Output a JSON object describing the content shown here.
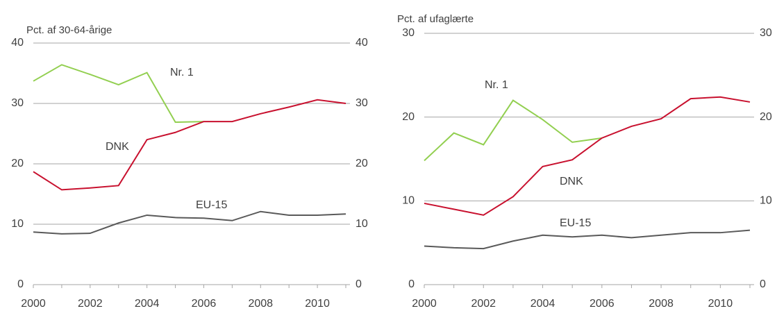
{
  "chart_data": [
    {
      "type": "line",
      "y_label": "Pct. af 30-64-årige",
      "x": [
        2000,
        2001,
        2002,
        2003,
        2004,
        2005,
        2006,
        2007,
        2008,
        2009,
        2010,
        2011
      ],
      "xlim": [
        2000,
        2011
      ],
      "xticks": [
        2000,
        2002,
        2004,
        2006,
        2008,
        2010
      ],
      "ylim": [
        0,
        40
      ],
      "yticks": [
        0,
        10,
        20,
        30,
        40
      ],
      "y2lim": [
        0,
        40
      ],
      "y2ticks": [
        0,
        10,
        20,
        30,
        40
      ],
      "grid": true,
      "series": [
        {
          "name": "Nr. 1",
          "color": "#92cf50",
          "values": [
            33.7,
            36.4,
            34.8,
            33.1,
            35.1,
            26.9,
            27.0,
            null,
            null,
            null,
            null,
            null
          ]
        },
        {
          "name": "DNK",
          "color": "#c8102e",
          "values": [
            18.7,
            15.7,
            16.0,
            16.4,
            24.0,
            25.2,
            27.0,
            27.0,
            28.3,
            29.4,
            30.6,
            30.0
          ]
        },
        {
          "name": "EU-15",
          "color": "#595959",
          "values": [
            8.7,
            8.4,
            8.5,
            10.2,
            11.5,
            11.1,
            11.0,
            10.6,
            12.1,
            11.5,
            11.5,
            11.7
          ]
        }
      ]
    },
    {
      "type": "line",
      "y_label": "Pct. af ufaglærte",
      "x": [
        2000,
        2001,
        2002,
        2003,
        2004,
        2005,
        2006,
        2007,
        2008,
        2009,
        2010,
        2011
      ],
      "xlim": [
        2000,
        2011
      ],
      "xticks": [
        2000,
        2002,
        2004,
        2006,
        2008,
        2010
      ],
      "ylim": [
        0,
        30
      ],
      "yticks": [
        0,
        10,
        20,
        30
      ],
      "y2lim": [
        0,
        30
      ],
      "y2ticks": [
        0,
        10,
        20,
        30
      ],
      "grid": true,
      "series": [
        {
          "name": "Nr. 1",
          "color": "#92cf50",
          "values": [
            14.8,
            18.1,
            16.7,
            22.0,
            19.7,
            17.0,
            17.5,
            null,
            null,
            null,
            null,
            null
          ]
        },
        {
          "name": "DNK",
          "color": "#c8102e",
          "values": [
            9.7,
            9.0,
            8.3,
            10.5,
            14.1,
            14.9,
            17.5,
            18.9,
            19.8,
            22.2,
            22.4,
            21.8
          ]
        },
        {
          "name": "EU-15",
          "color": "#595959",
          "values": [
            4.6,
            4.4,
            4.3,
            5.2,
            5.9,
            5.7,
            5.9,
            5.6,
            5.9,
            6.2,
            6.2,
            6.5
          ]
        }
      ]
    }
  ]
}
